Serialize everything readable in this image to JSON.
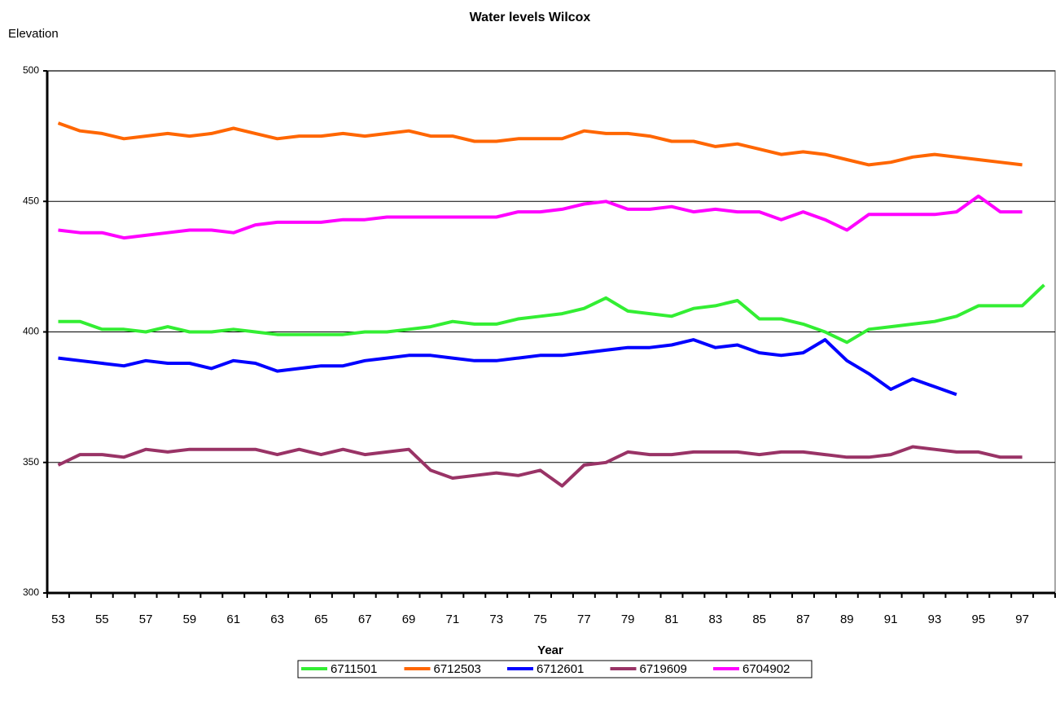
{
  "chart_data": {
    "type": "line",
    "title": "Water levels Wilcox",
    "y_label": "Elevation",
    "x_label": "Year",
    "categories": [
      "53",
      null,
      "55",
      null,
      "57",
      null,
      "59",
      null,
      "61",
      null,
      "63",
      null,
      "65",
      null,
      "67",
      null,
      "69",
      null,
      "71",
      null,
      "73",
      null,
      "75",
      null,
      "77",
      null,
      "79",
      null,
      "81",
      null,
      "83",
      null,
      "85",
      null,
      "87",
      null,
      "89",
      null,
      "91",
      null,
      "93",
      null,
      "95",
      null,
      "97",
      null
    ],
    "ylim": [
      300,
      500
    ],
    "yticks": [
      300,
      350,
      400,
      450,
      500
    ],
    "grid": true,
    "legend": "bottom",
    "series": [
      {
        "name": "6711501",
        "color": "#33ee33",
        "values": [
          404,
          404,
          401,
          401,
          400,
          402,
          400,
          400,
          401,
          400,
          399,
          399,
          399,
          399,
          400,
          400,
          401,
          402,
          404,
          403,
          403,
          405,
          406,
          407,
          409,
          413,
          408,
          407,
          406,
          409,
          410,
          412,
          405,
          405,
          403,
          400,
          396,
          401,
          402,
          403,
          404,
          406,
          410,
          410,
          410,
          418
        ]
      },
      {
        "name": "6712503",
        "color": "#ff6600",
        "values": [
          480,
          477,
          476,
          474,
          475,
          476,
          475,
          476,
          478,
          476,
          474,
          475,
          475,
          476,
          475,
          476,
          477,
          475,
          475,
          473,
          473,
          474,
          474,
          474,
          477,
          476,
          476,
          475,
          473,
          473,
          471,
          472,
          470,
          468,
          469,
          468,
          466,
          464,
          465,
          467,
          468,
          467,
          466,
          465,
          464,
          null
        ]
      },
      {
        "name": "6712601",
        "color": "#0000ff",
        "values": [
          390,
          389,
          388,
          387,
          389,
          388,
          388,
          386,
          389,
          388,
          385,
          386,
          387,
          387,
          389,
          390,
          391,
          391,
          390,
          389,
          389,
          390,
          391,
          391,
          392,
          393,
          394,
          394,
          395,
          397,
          394,
          395,
          392,
          391,
          392,
          397,
          389,
          384,
          378,
          382,
          379,
          376,
          null,
          null,
          null,
          null
        ]
      },
      {
        "name": "6719609",
        "color": "#993366",
        "values": [
          349,
          353,
          353,
          352,
          355,
          354,
          355,
          355,
          355,
          355,
          353,
          355,
          353,
          355,
          353,
          354,
          355,
          347,
          344,
          345,
          346,
          345,
          347,
          341,
          349,
          350,
          354,
          353,
          353,
          354,
          354,
          354,
          353,
          354,
          354,
          353,
          352,
          352,
          353,
          356,
          355,
          354,
          354,
          352,
          352,
          null
        ]
      },
      {
        "name": "6704902",
        "color": "#ff00ff",
        "values": [
          439,
          438,
          438,
          436,
          437,
          438,
          439,
          439,
          438,
          441,
          442,
          442,
          442,
          443,
          443,
          444,
          444,
          444,
          444,
          444,
          444,
          446,
          446,
          447,
          449,
          450,
          447,
          447,
          448,
          446,
          447,
          446,
          446,
          443,
          446,
          443,
          439,
          445,
          445,
          445,
          445,
          446,
          452,
          446,
          446,
          null
        ]
      }
    ]
  }
}
